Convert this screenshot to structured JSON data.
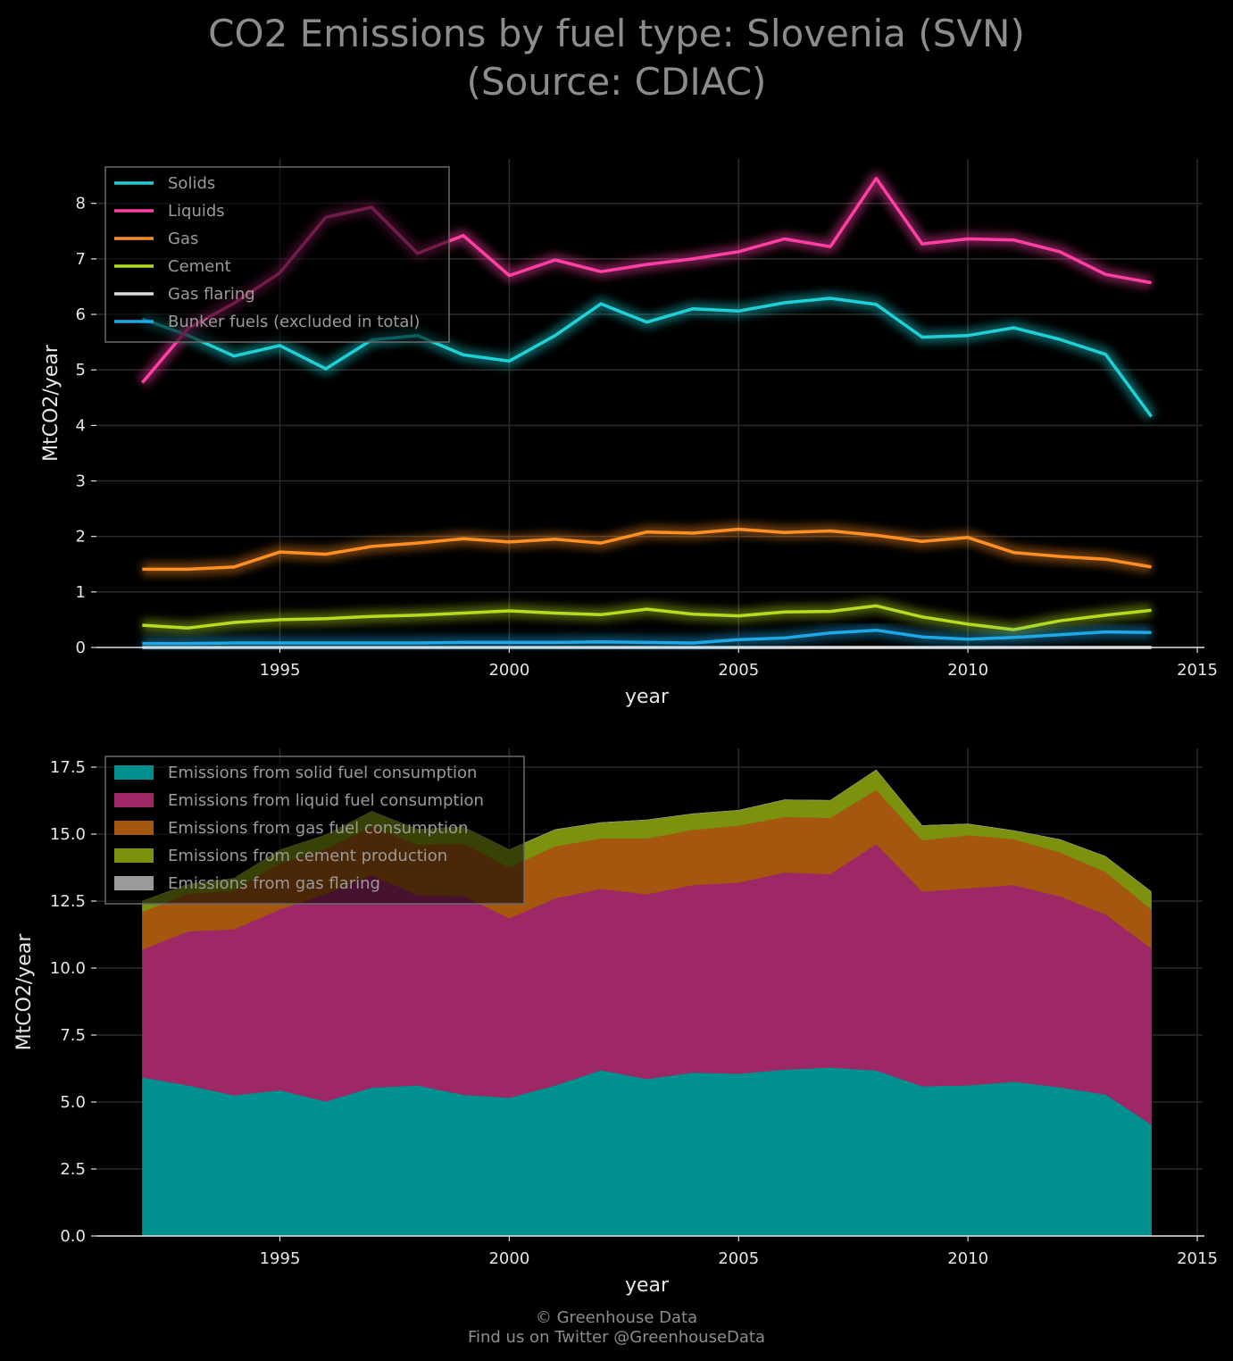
{
  "title": "CO2 Emissions by fuel type: Slovenia (SVN)",
  "subtitle": "(Source: CDIAC)",
  "footer": {
    "copyright": "© Greenhouse Data",
    "twitter": "Find us on Twitter @GreenhouseData"
  },
  "chart_data": [
    {
      "type": "line",
      "xlabel": "year",
      "ylabel": "MtCO2/year",
      "xlim": [
        1991,
        2015
      ],
      "ylim": [
        0,
        8.8
      ],
      "xticks": [
        1995,
        2000,
        2005,
        2010,
        2015
      ],
      "yticks": [
        0,
        1,
        2,
        3,
        4,
        5,
        6,
        7,
        8
      ],
      "grid": true,
      "legend_position": "top-left",
      "x": [
        1992,
        1993,
        1994,
        1995,
        1996,
        1997,
        1998,
        1999,
        2000,
        2001,
        2002,
        2003,
        2004,
        2005,
        2006,
        2007,
        2008,
        2009,
        2010,
        2011,
        2012,
        2013,
        2014
      ],
      "series": [
        {
          "name": "Solids",
          "color": "#1fd1d6",
          "values": [
            5.92,
            5.62,
            5.25,
            5.44,
            5.02,
            5.54,
            5.62,
            5.27,
            5.16,
            5.62,
            6.19,
            5.86,
            6.1,
            6.06,
            6.21,
            6.29,
            6.18,
            5.59,
            5.62,
            5.76,
            5.55,
            5.28,
            4.16
          ]
        },
        {
          "name": "Liquids",
          "color": "#ff3fa4",
          "values": [
            4.77,
            5.75,
            6.2,
            6.75,
            7.75,
            7.93,
            7.1,
            7.42,
            6.7,
            6.98,
            6.77,
            6.9,
            7.0,
            7.13,
            7.36,
            7.22,
            8.45,
            7.27,
            7.36,
            7.34,
            7.13,
            6.72,
            6.57
          ]
        },
        {
          "name": "Gas",
          "color": "#ff8f24",
          "values": [
            1.41,
            1.41,
            1.45,
            1.72,
            1.68,
            1.82,
            1.88,
            1.96,
            1.9,
            1.95,
            1.88,
            2.08,
            2.06,
            2.13,
            2.07,
            2.1,
            2.02,
            1.91,
            1.98,
            1.71,
            1.64,
            1.59,
            1.45
          ]
        },
        {
          "name": "Cement",
          "color": "#b5dc1f",
          "values": [
            0.4,
            0.35,
            0.45,
            0.5,
            0.52,
            0.56,
            0.58,
            0.62,
            0.66,
            0.62,
            0.59,
            0.69,
            0.6,
            0.57,
            0.64,
            0.65,
            0.75,
            0.55,
            0.42,
            0.32,
            0.48,
            0.58,
            0.67
          ]
        },
        {
          "name": "Gas flaring",
          "color": "#dcdcdc",
          "values": [
            0,
            0,
            0,
            0,
            0,
            0,
            0,
            0,
            0,
            0,
            0,
            0,
            0,
            0,
            0,
            0,
            0,
            0,
            0,
            0,
            0,
            0,
            0
          ]
        },
        {
          "name": "Bunker fuels (excluded in total)",
          "color": "#1ea8e6",
          "values": [
            0.07,
            0.07,
            0.08,
            0.08,
            0.08,
            0.08,
            0.08,
            0.09,
            0.09,
            0.09,
            0.1,
            0.09,
            0.08,
            0.14,
            0.17,
            0.26,
            0.31,
            0.19,
            0.15,
            0.18,
            0.23,
            0.28,
            0.27
          ]
        }
      ]
    },
    {
      "type": "area",
      "stacked": true,
      "xlabel": "year",
      "ylabel": "MtCO2/year",
      "xlim": [
        1991,
        2015
      ],
      "ylim": [
        0,
        18.2
      ],
      "xticks": [
        1995,
        2000,
        2005,
        2010,
        2015
      ],
      "yticks": [
        "0.0",
        "2.5",
        "5.0",
        "7.5",
        "10.0",
        "12.5",
        "15.0",
        "17.5"
      ],
      "grid": true,
      "legend_position": "top-left",
      "x": [
        1992,
        1993,
        1994,
        1995,
        1996,
        1997,
        1998,
        1999,
        2000,
        2001,
        2002,
        2003,
        2004,
        2005,
        2006,
        2007,
        2008,
        2009,
        2010,
        2011,
        2012,
        2013,
        2014
      ],
      "series": [
        {
          "name": "Emissions from solid fuel consumption",
          "color": "#00908f",
          "values": [
            5.92,
            5.62,
            5.25,
            5.44,
            5.02,
            5.54,
            5.62,
            5.27,
            5.16,
            5.62,
            6.19,
            5.86,
            6.1,
            6.06,
            6.21,
            6.29,
            6.18,
            5.59,
            5.62,
            5.76,
            5.55,
            5.28,
            4.16
          ]
        },
        {
          "name": "Emissions from liquid fuel consumption",
          "color": "#9e2865",
          "values": [
            4.77,
            5.75,
            6.2,
            6.75,
            7.75,
            7.93,
            7.1,
            7.42,
            6.7,
            6.98,
            6.77,
            6.9,
            7.0,
            7.13,
            7.36,
            7.22,
            8.45,
            7.27,
            7.36,
            7.34,
            7.13,
            6.72,
            6.57
          ]
        },
        {
          "name": "Emissions from gas fuel consumption",
          "color": "#a5570f",
          "values": [
            1.41,
            1.41,
            1.45,
            1.72,
            1.68,
            1.82,
            1.88,
            1.96,
            1.9,
            1.95,
            1.88,
            2.08,
            2.06,
            2.13,
            2.07,
            2.1,
            2.02,
            1.91,
            1.98,
            1.71,
            1.64,
            1.59,
            1.45
          ]
        },
        {
          "name": "Emissions from cement production",
          "color": "#7c920e",
          "values": [
            0.4,
            0.35,
            0.45,
            0.5,
            0.52,
            0.56,
            0.58,
            0.62,
            0.66,
            0.62,
            0.59,
            0.69,
            0.6,
            0.57,
            0.64,
            0.65,
            0.75,
            0.55,
            0.42,
            0.32,
            0.48,
            0.58,
            0.67
          ]
        },
        {
          "name": "Emissions from gas flaring",
          "color": "#9a9a9a",
          "values": [
            0,
            0,
            0,
            0,
            0,
            0,
            0,
            0,
            0,
            0,
            0,
            0,
            0,
            0,
            0,
            0,
            0,
            0,
            0,
            0,
            0,
            0,
            0
          ]
        }
      ]
    }
  ]
}
